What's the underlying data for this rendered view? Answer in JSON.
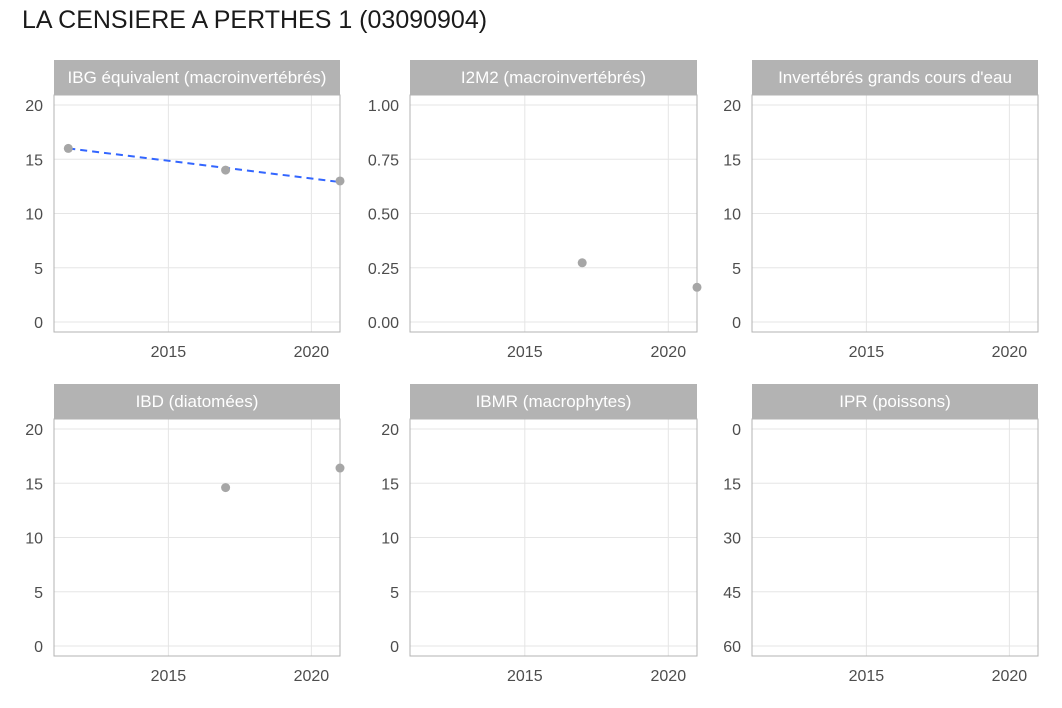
{
  "title": "LA CENSIERE A PERTHES 1 (03090904)",
  "chart_data": {
    "type": "scatter",
    "layout": "facet-grid-2x3",
    "colors": {
      "point": "#a6a6a6",
      "trend": "#3366ff",
      "strip": "#b3b3b3",
      "grid": "#e5e5e5",
      "border": "#b3b3b3"
    },
    "panels": [
      {
        "label": "IBG équivalent (macroinvertébrés)",
        "xlim": [
          2011,
          2021
        ],
        "xticks": [
          2015,
          2020
        ],
        "ylim": [
          0,
          20
        ],
        "yticks": [
          0,
          5,
          10,
          15,
          20
        ],
        "y_reversed": false,
        "points": [
          {
            "x": 2011.5,
            "y": 16
          },
          {
            "x": 2017,
            "y": 14
          },
          {
            "x": 2021,
            "y": 13
          }
        ],
        "trend": [
          {
            "x": 2011.5,
            "y": 16
          },
          {
            "x": 2021,
            "y": 12.9
          }
        ]
      },
      {
        "label": "I2M2 (macroinvertébrés)",
        "xlim": [
          2011,
          2021
        ],
        "xticks": [
          2015,
          2020
        ],
        "ylim": [
          0,
          1
        ],
        "yticks": [
          0,
          0.25,
          0.5,
          0.75,
          1
        ],
        "ytick_labels": [
          "0.00",
          "0.25",
          "0.50",
          "0.75",
          "1.00"
        ],
        "y_reversed": false,
        "points": [
          {
            "x": 2017,
            "y": 0.273
          },
          {
            "x": 2021,
            "y": 0.16
          }
        ]
      },
      {
        "label": "Invertébrés grands cours d'eau",
        "xlim": [
          2011,
          2021
        ],
        "xticks": [
          2015,
          2020
        ],
        "ylim": [
          0,
          20
        ],
        "yticks": [
          0,
          5,
          10,
          15,
          20
        ],
        "y_reversed": false,
        "points": []
      },
      {
        "label": "IBD (diatomées)",
        "xlim": [
          2011,
          2021
        ],
        "xticks": [
          2015,
          2020
        ],
        "ylim": [
          0,
          20
        ],
        "yticks": [
          0,
          5,
          10,
          15,
          20
        ],
        "y_reversed": false,
        "points": [
          {
            "x": 2017,
            "y": 14.6
          },
          {
            "x": 2021,
            "y": 16.4
          }
        ]
      },
      {
        "label": "IBMR (macrophytes)",
        "xlim": [
          2011,
          2021
        ],
        "xticks": [
          2015,
          2020
        ],
        "ylim": [
          0,
          20
        ],
        "yticks": [
          0,
          5,
          10,
          15,
          20
        ],
        "y_reversed": false,
        "points": []
      },
      {
        "label": "IPR (poissons)",
        "xlim": [
          2011,
          2021
        ],
        "xticks": [
          2015,
          2020
        ],
        "ylim": [
          0,
          60
        ],
        "yticks": [
          0,
          15,
          30,
          45,
          60
        ],
        "y_reversed": true,
        "points": []
      }
    ]
  }
}
